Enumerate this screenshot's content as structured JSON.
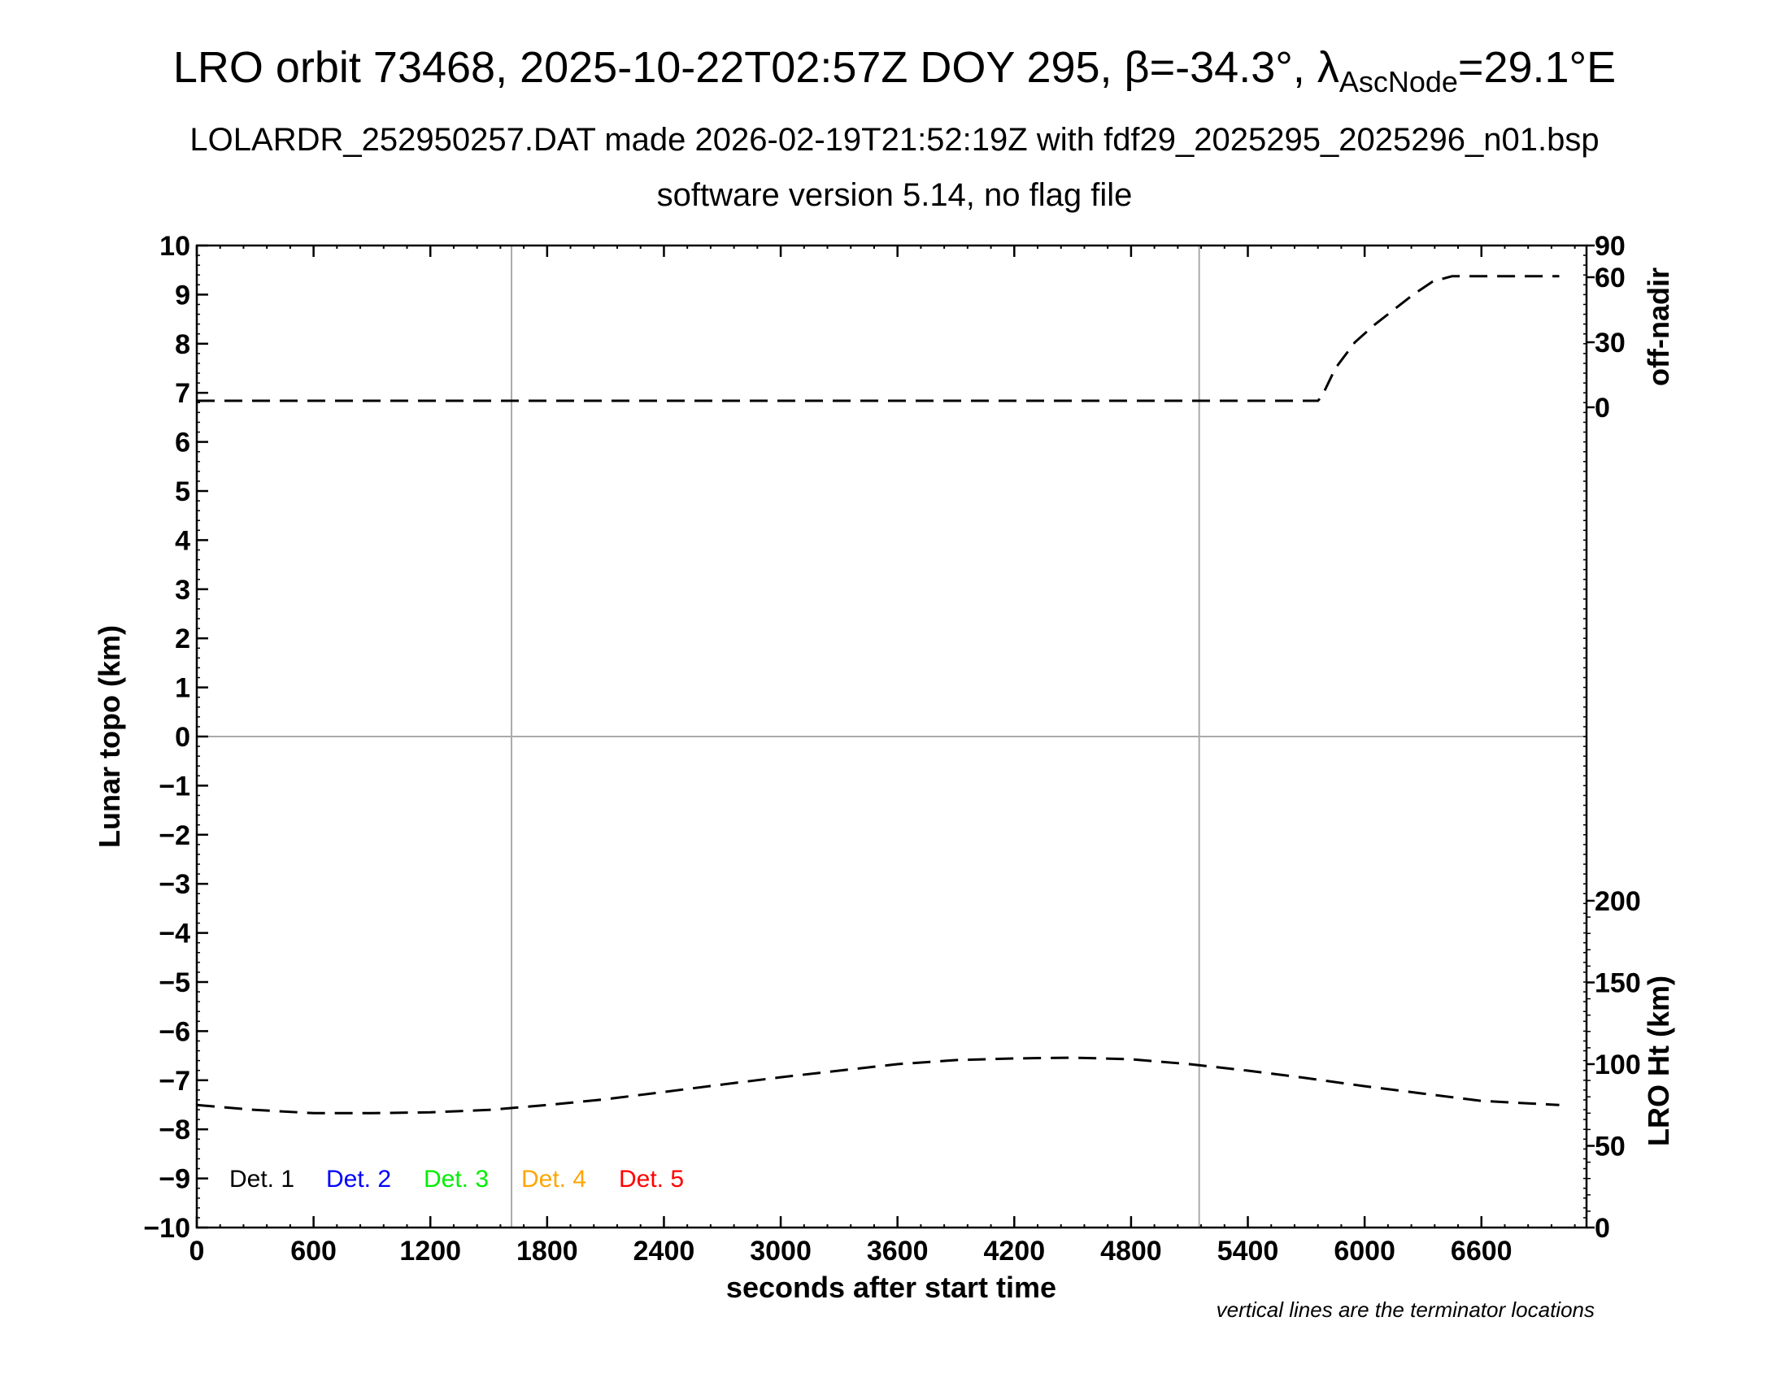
{
  "titles": {
    "line1_main": "LRO orbit 73468, 2025-10-22T02:57Z DOY 295, β=-34.3°, λ",
    "line1_sub": "AscNode",
    "line1_end": "=29.1°E",
    "line2": "LOLARDR_252950257.DAT made 2026-02-19T21:52:19Z with fdf29_2025295_2025296_n01.bsp",
    "line3": "software version 5.14, no flag file"
  },
  "chart_data": {
    "type": "line",
    "xlabel": "seconds after start time",
    "ylabel": "Lunar topo (km)",
    "xlim": [
      0,
      7140
    ],
    "ylim": [
      -10,
      10
    ],
    "x_ticks": [
      0,
      600,
      1200,
      1800,
      2400,
      3000,
      3600,
      4200,
      4800,
      5400,
      6000,
      6600
    ],
    "y_ticks": [
      10,
      9,
      8,
      7,
      6,
      5,
      4,
      3,
      2,
      1,
      0,
      -1,
      -2,
      -3,
      -4,
      -5,
      -6,
      -7,
      -8,
      -9,
      -10
    ],
    "y_tick_labels": [
      "10",
      "9",
      "8",
      "7",
      "6",
      "5",
      "4",
      "3",
      "2",
      "1",
      "0",
      "−1",
      "−2",
      "−3",
      "−4",
      "−5",
      "−6",
      "−7",
      "−8",
      "−9",
      "−10"
    ],
    "grid_vertical_x": [
      1617,
      5150
    ],
    "grid_horizontal_y": [
      0
    ],
    "right_axis_top": {
      "label": "off-nadir",
      "ticks": [
        0,
        30,
        60,
        90
      ],
      "tick_labels": [
        "0",
        "30",
        "60",
        "90"
      ]
    },
    "right_axis_bottom": {
      "label": "LRO Ht (km)",
      "range": [
        0,
        200
      ],
      "ticks": [
        0,
        50,
        100,
        150,
        200
      ],
      "tick_labels": [
        "0",
        "50",
        "100",
        "150",
        "200"
      ]
    },
    "series": [
      {
        "axis": "off-nadir",
        "style": "dashed",
        "x": [
          0,
          600,
          1200,
          1800,
          2400,
          3000,
          3600,
          4200,
          4800,
          5400,
          5760,
          5780,
          5850,
          5950,
          6050,
          6150,
          6250,
          6350,
          6450,
          6600,
          6800,
          7000
        ],
        "y": [
          3,
          3,
          3,
          3,
          3,
          3,
          3,
          3,
          3,
          3,
          3,
          5,
          18,
          30,
          38,
          45,
          52,
          58,
          61,
          61,
          61,
          61
        ]
      },
      {
        "axis": "LRO Ht (km)",
        "style": "dashed",
        "x": [
          0,
          300,
          600,
          900,
          1200,
          1500,
          1800,
          2100,
          2400,
          2700,
          3000,
          3300,
          3600,
          3900,
          4200,
          4500,
          4800,
          5100,
          5400,
          5700,
          6000,
          6300,
          6600,
          7000
        ],
        "y": [
          75,
          72,
          70,
          70,
          70.5,
          72,
          75,
          78.5,
          83,
          87.5,
          92,
          96,
          100,
          102.5,
          103.5,
          104,
          103,
          100,
          96,
          91.5,
          86.5,
          82,
          77.5,
          75
        ]
      }
    ],
    "legend": {
      "placement": "bottom-left",
      "entries": [
        {
          "name": "Det. 1",
          "color": "#000000"
        },
        {
          "name": "Det. 2",
          "color": "#0000ff"
        },
        {
          "name": "Det. 3",
          "color": "#00ee00"
        },
        {
          "name": "Det. 4",
          "color": "#ffa500"
        },
        {
          "name": "Det. 5",
          "color": "#ff0000"
        }
      ]
    },
    "note": "vertical lines are the terminator locations"
  }
}
